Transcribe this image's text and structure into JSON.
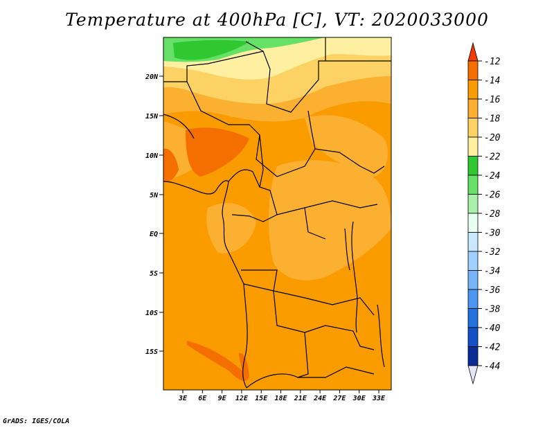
{
  "title": "Temperature at 400hPa [C], VT: 2020033000",
  "credit": "GrADS: IGES/COLA",
  "map": {
    "lat_labels": [
      "20N",
      "15N",
      "10N",
      "5N",
      "EQ",
      "5S",
      "10S",
      "15S"
    ],
    "lon_labels": [
      "3E",
      "6E",
      "9E",
      "12E",
      "15E",
      "18E",
      "21E",
      "24E",
      "27E",
      "30E",
      "33E"
    ]
  },
  "colorbar": {
    "labels": [
      "-12",
      "-14",
      "-16",
      "-18",
      "-20",
      "-22",
      "-24",
      "-26",
      "-28",
      "-30",
      "-32",
      "-34",
      "-36",
      "-38",
      "-40",
      "-42",
      "-44"
    ],
    "colors": [
      "#f03c00",
      "#f56e00",
      "#fa9b00",
      "#fbb032",
      "#fcd264",
      "#fef0a0",
      "#30c830",
      "#66e066",
      "#aaf0aa",
      "#e6fff0",
      "#c8e8ff",
      "#a0d0ff",
      "#78b4f8",
      "#4a96f0",
      "#2472e0",
      "#1450c8",
      "#0a2c96",
      "#000064",
      "#e6e6fa"
    ]
  },
  "regions": {
    "sahara_green_band": "#30c830",
    "sahara_light_green": "#66e066",
    "north_pale": "#fef0a0",
    "north_yellow": "#fcd264",
    "central_light_orange": "#fbb032",
    "main_orange": "#fa9b00",
    "warm_core": "#f56e00"
  }
}
